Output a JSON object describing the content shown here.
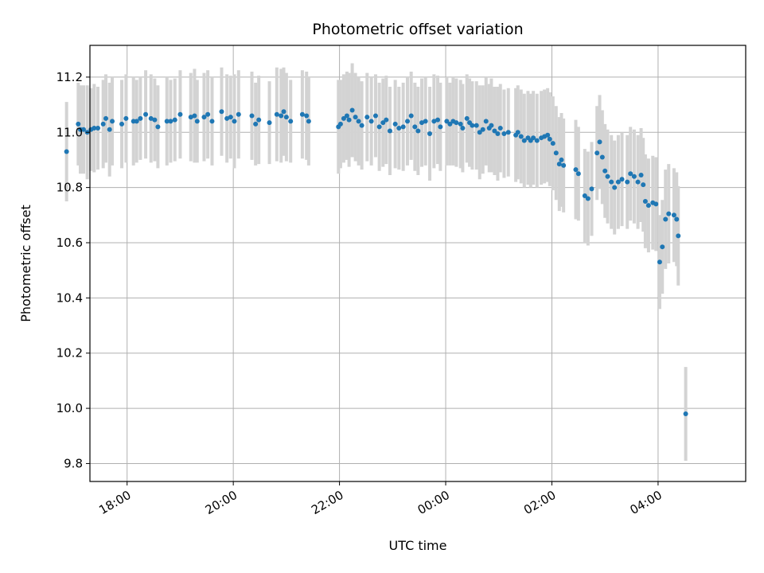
{
  "colors": {
    "point": "#1f77b4",
    "errorbar": "#d3d3d3",
    "grid": "#b0b0b0",
    "axis": "#000000"
  },
  "chart_data": {
    "type": "scatter",
    "title": "Photometric offset variation",
    "xlabel": "UTC time",
    "ylabel": "Photometric offset",
    "x_unit": "hours since 17:00 UTC",
    "xlim": [
      17.3,
      29.65
    ],
    "ylim": [
      9.735,
      11.315
    ],
    "grid": true,
    "xticks": [
      {
        "value": 18,
        "label": "18:00"
      },
      {
        "value": 20,
        "label": "20:00"
      },
      {
        "value": 22,
        "label": "22:00"
      },
      {
        "value": 24,
        "label": "00:00"
      },
      {
        "value": 26,
        "label": "02:00"
      },
      {
        "value": 28,
        "label": "04:00"
      }
    ],
    "yticks": [
      {
        "value": 9.8,
        "label": "9.8"
      },
      {
        "value": 10.0,
        "label": "10.0"
      },
      {
        "value": 10.2,
        "label": "10.2"
      },
      {
        "value": 10.4,
        "label": "10.4"
      },
      {
        "value": 10.6,
        "label": "10.6"
      },
      {
        "value": 10.8,
        "label": "10.8"
      },
      {
        "value": 11.0,
        "label": "11.0"
      },
      {
        "value": 11.2,
        "label": "11.2"
      }
    ],
    "series": [
      {
        "name": "offset",
        "points": [
          {
            "x": 16.86,
            "y": 10.93,
            "err": 0.18
          },
          {
            "x": 17.08,
            "y": 11.03,
            "err": 0.15
          },
          {
            "x": 17.12,
            "y": 11.01,
            "err": 0.16
          },
          {
            "x": 17.18,
            "y": 11.01,
            "err": 0.16
          },
          {
            "x": 17.25,
            "y": 11.0,
            "err": 0.17
          },
          {
            "x": 17.32,
            "y": 11.01,
            "err": 0.15
          },
          {
            "x": 17.38,
            "y": 11.015,
            "err": 0.16
          },
          {
            "x": 17.45,
            "y": 11.015,
            "err": 0.15
          },
          {
            "x": 17.55,
            "y": 11.03,
            "err": 0.16
          },
          {
            "x": 17.6,
            "y": 11.05,
            "err": 0.16
          },
          {
            "x": 17.67,
            "y": 11.01,
            "err": 0.17
          },
          {
            "x": 17.72,
            "y": 11.04,
            "err": 0.16
          },
          {
            "x": 17.9,
            "y": 11.03,
            "err": 0.16
          },
          {
            "x": 17.98,
            "y": 11.05,
            "err": 0.16
          },
          {
            "x": 18.12,
            "y": 11.04,
            "err": 0.16
          },
          {
            "x": 18.18,
            "y": 11.04,
            "err": 0.15
          },
          {
            "x": 18.25,
            "y": 11.05,
            "err": 0.15
          },
          {
            "x": 18.35,
            "y": 11.065,
            "err": 0.16
          },
          {
            "x": 18.45,
            "y": 11.05,
            "err": 0.16
          },
          {
            "x": 18.52,
            "y": 11.045,
            "err": 0.15
          },
          {
            "x": 18.58,
            "y": 11.02,
            "err": 0.15
          },
          {
            "x": 18.75,
            "y": 11.04,
            "err": 0.16
          },
          {
            "x": 18.82,
            "y": 11.04,
            "err": 0.15
          },
          {
            "x": 18.9,
            "y": 11.045,
            "err": 0.15
          },
          {
            "x": 19.0,
            "y": 11.065,
            "err": 0.16
          },
          {
            "x": 19.2,
            "y": 11.055,
            "err": 0.16
          },
          {
            "x": 19.27,
            "y": 11.06,
            "err": 0.17
          },
          {
            "x": 19.32,
            "y": 11.04,
            "err": 0.15
          },
          {
            "x": 19.45,
            "y": 11.055,
            "err": 0.16
          },
          {
            "x": 19.52,
            "y": 11.065,
            "err": 0.16
          },
          {
            "x": 19.6,
            "y": 11.04,
            "err": 0.16
          },
          {
            "x": 19.78,
            "y": 11.075,
            "err": 0.16
          },
          {
            "x": 19.88,
            "y": 11.05,
            "err": 0.16
          },
          {
            "x": 19.95,
            "y": 11.055,
            "err": 0.15
          },
          {
            "x": 20.02,
            "y": 11.04,
            "err": 0.17
          },
          {
            "x": 20.1,
            "y": 11.065,
            "err": 0.16
          },
          {
            "x": 20.35,
            "y": 11.06,
            "err": 0.16
          },
          {
            "x": 20.42,
            "y": 11.03,
            "err": 0.15
          },
          {
            "x": 20.48,
            "y": 11.045,
            "err": 0.16
          },
          {
            "x": 20.68,
            "y": 11.035,
            "err": 0.15
          },
          {
            "x": 20.82,
            "y": 11.065,
            "err": 0.17
          },
          {
            "x": 20.9,
            "y": 11.06,
            "err": 0.17
          },
          {
            "x": 20.95,
            "y": 11.075,
            "err": 0.16
          },
          {
            "x": 21.0,
            "y": 11.055,
            "err": 0.16
          },
          {
            "x": 21.08,
            "y": 11.04,
            "err": 0.15
          },
          {
            "x": 21.3,
            "y": 11.065,
            "err": 0.16
          },
          {
            "x": 21.38,
            "y": 11.06,
            "err": 0.16
          },
          {
            "x": 21.42,
            "y": 11.04,
            "err": 0.16
          },
          {
            "x": 21.98,
            "y": 11.02,
            "err": 0.17
          },
          {
            "x": 22.02,
            "y": 11.03,
            "err": 0.16
          },
          {
            "x": 22.08,
            "y": 11.05,
            "err": 0.16
          },
          {
            "x": 22.14,
            "y": 11.06,
            "err": 0.16
          },
          {
            "x": 22.18,
            "y": 11.045,
            "err": 0.17
          },
          {
            "x": 22.24,
            "y": 11.08,
            "err": 0.17
          },
          {
            "x": 22.3,
            "y": 11.055,
            "err": 0.16
          },
          {
            "x": 22.36,
            "y": 11.04,
            "err": 0.16
          },
          {
            "x": 22.42,
            "y": 11.025,
            "err": 0.16
          },
          {
            "x": 22.52,
            "y": 11.055,
            "err": 0.16
          },
          {
            "x": 22.6,
            "y": 11.04,
            "err": 0.16
          },
          {
            "x": 22.68,
            "y": 11.06,
            "err": 0.15
          },
          {
            "x": 22.75,
            "y": 11.02,
            "err": 0.16
          },
          {
            "x": 22.82,
            "y": 11.035,
            "err": 0.16
          },
          {
            "x": 22.88,
            "y": 11.045,
            "err": 0.16
          },
          {
            "x": 22.95,
            "y": 11.005,
            "err": 0.16
          },
          {
            "x": 23.05,
            "y": 11.03,
            "err": 0.16
          },
          {
            "x": 23.12,
            "y": 11.015,
            "err": 0.15
          },
          {
            "x": 23.2,
            "y": 11.02,
            "err": 0.16
          },
          {
            "x": 23.28,
            "y": 11.04,
            "err": 0.16
          },
          {
            "x": 23.35,
            "y": 11.06,
            "err": 0.16
          },
          {
            "x": 23.42,
            "y": 11.02,
            "err": 0.16
          },
          {
            "x": 23.48,
            "y": 11.005,
            "err": 0.16
          },
          {
            "x": 23.55,
            "y": 11.035,
            "err": 0.16
          },
          {
            "x": 23.62,
            "y": 11.04,
            "err": 0.16
          },
          {
            "x": 23.7,
            "y": 10.995,
            "err": 0.17
          },
          {
            "x": 23.78,
            "y": 11.04,
            "err": 0.17
          },
          {
            "x": 23.85,
            "y": 11.045,
            "err": 0.16
          },
          {
            "x": 23.9,
            "y": 11.02,
            "err": 0.16
          },
          {
            "x": 24.02,
            "y": 11.04,
            "err": 0.16
          },
          {
            "x": 24.08,
            "y": 11.03,
            "err": 0.15
          },
          {
            "x": 24.14,
            "y": 11.04,
            "err": 0.16
          },
          {
            "x": 24.2,
            "y": 11.035,
            "err": 0.16
          },
          {
            "x": 24.28,
            "y": 11.03,
            "err": 0.16
          },
          {
            "x": 24.32,
            "y": 11.015,
            "err": 0.16
          },
          {
            "x": 24.4,
            "y": 11.05,
            "err": 0.16
          },
          {
            "x": 24.45,
            "y": 11.035,
            "err": 0.16
          },
          {
            "x": 24.5,
            "y": 11.025,
            "err": 0.16
          },
          {
            "x": 24.58,
            "y": 11.025,
            "err": 0.16
          },
          {
            "x": 24.64,
            "y": 11.0,
            "err": 0.17
          },
          {
            "x": 24.7,
            "y": 11.01,
            "err": 0.16
          },
          {
            "x": 24.76,
            "y": 11.04,
            "err": 0.16
          },
          {
            "x": 24.82,
            "y": 11.015,
            "err": 0.16
          },
          {
            "x": 24.86,
            "y": 11.025,
            "err": 0.17
          },
          {
            "x": 24.92,
            "y": 11.005,
            "err": 0.16
          },
          {
            "x": 24.98,
            "y": 10.995,
            "err": 0.17
          },
          {
            "x": 25.03,
            "y": 11.015,
            "err": 0.16
          },
          {
            "x": 25.1,
            "y": 10.995,
            "err": 0.16
          },
          {
            "x": 25.18,
            "y": 11.0,
            "err": 0.16
          },
          {
            "x": 25.32,
            "y": 10.99,
            "err": 0.17
          },
          {
            "x": 25.36,
            "y": 11.0,
            "err": 0.17
          },
          {
            "x": 25.42,
            "y": 10.985,
            "err": 0.17
          },
          {
            "x": 25.48,
            "y": 10.97,
            "err": 0.17
          },
          {
            "x": 25.55,
            "y": 10.98,
            "err": 0.17
          },
          {
            "x": 25.6,
            "y": 10.97,
            "err": 0.17
          },
          {
            "x": 25.65,
            "y": 10.98,
            "err": 0.17
          },
          {
            "x": 25.72,
            "y": 10.97,
            "err": 0.17
          },
          {
            "x": 25.8,
            "y": 10.98,
            "err": 0.17
          },
          {
            "x": 25.86,
            "y": 10.985,
            "err": 0.17
          },
          {
            "x": 25.92,
            "y": 10.99,
            "err": 0.17
          },
          {
            "x": 25.96,
            "y": 10.975,
            "err": 0.17
          },
          {
            "x": 26.02,
            "y": 10.96,
            "err": 0.17
          },
          {
            "x": 26.08,
            "y": 10.925,
            "err": 0.17
          },
          {
            "x": 26.14,
            "y": 10.885,
            "err": 0.17
          },
          {
            "x": 26.18,
            "y": 10.9,
            "err": 0.17
          },
          {
            "x": 26.22,
            "y": 10.88,
            "err": 0.17
          },
          {
            "x": 26.45,
            "y": 10.865,
            "err": 0.18
          },
          {
            "x": 26.5,
            "y": 10.85,
            "err": 0.17
          },
          {
            "x": 26.62,
            "y": 10.77,
            "err": 0.17
          },
          {
            "x": 26.68,
            "y": 10.76,
            "err": 0.17
          },
          {
            "x": 26.75,
            "y": 10.795,
            "err": 0.17
          },
          {
            "x": 26.85,
            "y": 10.925,
            "err": 0.17
          },
          {
            "x": 26.9,
            "y": 10.965,
            "err": 0.17
          },
          {
            "x": 26.95,
            "y": 10.91,
            "err": 0.17
          },
          {
            "x": 27.0,
            "y": 10.86,
            "err": 0.17
          },
          {
            "x": 27.05,
            "y": 10.84,
            "err": 0.17
          },
          {
            "x": 27.12,
            "y": 10.82,
            "err": 0.17
          },
          {
            "x": 27.18,
            "y": 10.8,
            "err": 0.17
          },
          {
            "x": 27.25,
            "y": 10.82,
            "err": 0.17
          },
          {
            "x": 27.32,
            "y": 10.83,
            "err": 0.17
          },
          {
            "x": 27.42,
            "y": 10.82,
            "err": 0.17
          },
          {
            "x": 27.48,
            "y": 10.85,
            "err": 0.17
          },
          {
            "x": 27.55,
            "y": 10.84,
            "err": 0.17
          },
          {
            "x": 27.62,
            "y": 10.82,
            "err": 0.17
          },
          {
            "x": 27.68,
            "y": 10.845,
            "err": 0.17
          },
          {
            "x": 27.72,
            "y": 10.81,
            "err": 0.17
          },
          {
            "x": 27.76,
            "y": 10.75,
            "err": 0.17
          },
          {
            "x": 27.82,
            "y": 10.735,
            "err": 0.17
          },
          {
            "x": 27.9,
            "y": 10.745,
            "err": 0.17
          },
          {
            "x": 27.96,
            "y": 10.74,
            "err": 0.17
          },
          {
            "x": 28.03,
            "y": 10.53,
            "err": 0.17
          },
          {
            "x": 28.08,
            "y": 10.585,
            "err": 0.17
          },
          {
            "x": 28.14,
            "y": 10.685,
            "err": 0.18
          },
          {
            "x": 28.2,
            "y": 10.705,
            "err": 0.18
          },
          {
            "x": 28.3,
            "y": 10.7,
            "err": 0.17
          },
          {
            "x": 28.35,
            "y": 10.685,
            "err": 0.17
          },
          {
            "x": 28.38,
            "y": 10.625,
            "err": 0.18
          },
          {
            "x": 28.52,
            "y": 9.98,
            "err": 0.17
          }
        ]
      }
    ]
  }
}
